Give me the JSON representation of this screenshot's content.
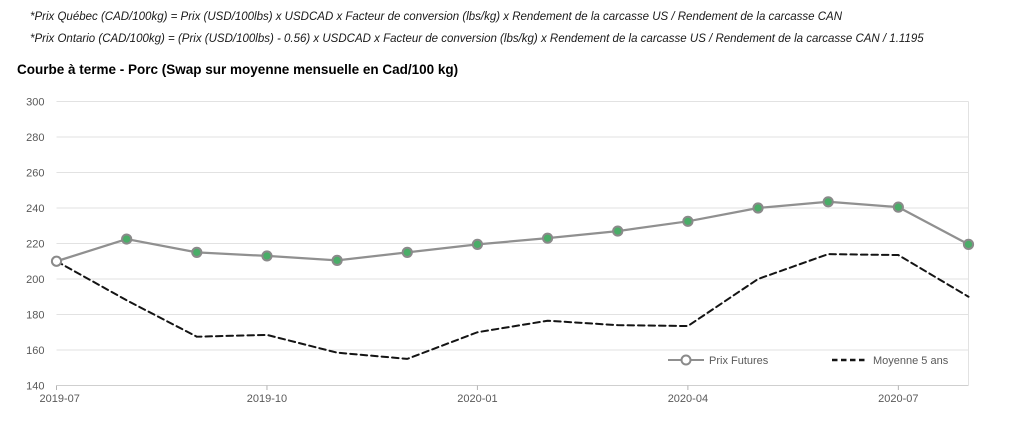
{
  "formulas": {
    "quebec": "*Prix Québec (CAD/100kg) = Prix (USD/100lbs) x USDCAD x Facteur de conversion (lbs/kg) x Rendement de la carcasse US / Rendement de la carcasse CAN",
    "ontario": "*Prix Ontario (CAD/100kg) = (Prix (USD/100lbs) - 0.56) x USDCAD x Facteur de conversion (lbs/kg) x Rendement de la carcasse US / Rendement de la carcasse CAN / 1.1195"
  },
  "chart_data": {
    "type": "line",
    "title": "Courbe à terme - Porc (Swap sur moyenne mensuelle en Cad/100 kg)",
    "x": [
      "2019-07",
      "2019-08",
      "2019-09",
      "2019-10",
      "2019-11",
      "2019-12",
      "2020-01",
      "2020-02",
      "2020-03",
      "2020-04",
      "2020-05",
      "2020-06",
      "2020-07",
      "2020-08"
    ],
    "x_tick_every": 3,
    "x_tick_labels": [
      "2019-07",
      "2019-10",
      "2020-01",
      "2020-04",
      "2020-07"
    ],
    "y_ticks": [
      140,
      160,
      180,
      200,
      220,
      240,
      260,
      280,
      300
    ],
    "ylim": [
      140,
      300
    ],
    "grid": "horizontal",
    "legend_position": "inside-bottom-right",
    "series": [
      {
        "name": "Prix Futures",
        "line_style": "solid",
        "color": "#909090",
        "marker": "circle",
        "marker_stroke": "#8a8a8a",
        "marker_fill": "#4aad68",
        "marker_first_fill": "#ffffff",
        "values": [
          210,
          222.5,
          215,
          213,
          210.5,
          215,
          219.5,
          223,
          227,
          232.5,
          240,
          243.5,
          240.5,
          219.5
        ]
      },
      {
        "name": "Moyenne 5 ans",
        "line_style": "dashed",
        "color": "#141414",
        "marker": "none",
        "values": [
          210,
          188,
          167.5,
          168.5,
          158.5,
          155,
          170,
          176.5,
          174,
          173.5,
          200,
          214,
          213.5,
          190
        ]
      }
    ],
    "colors": {
      "gridline": "#e2e2e2",
      "axis_line": "#cfcfcf",
      "tick": "#b3b3b3",
      "axis_label": "#595959",
      "legend_label": "#595959"
    }
  }
}
